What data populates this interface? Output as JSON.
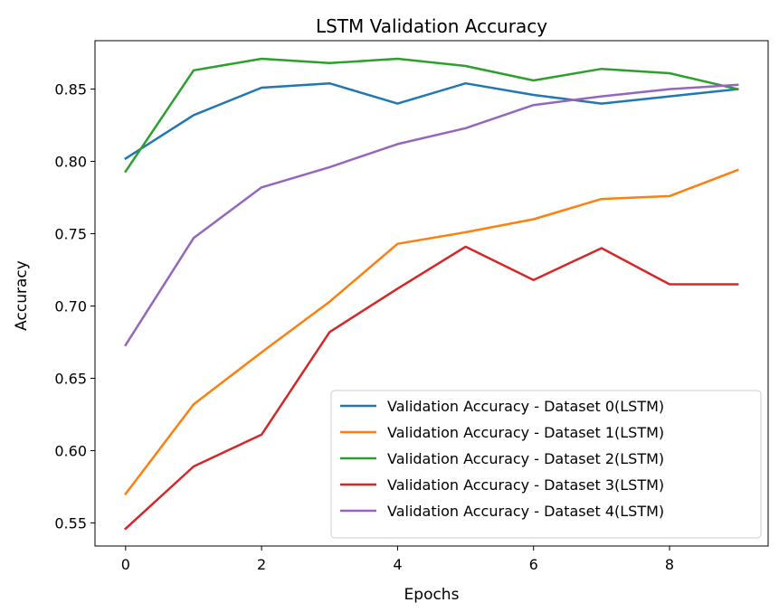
{
  "chart_data": {
    "type": "line",
    "title": "LSTM Validation Accuracy",
    "xlabel": "Epochs",
    "ylabel": "Accuracy",
    "xlim": [
      -0.45,
      9.45
    ],
    "ylim": [
      0.534,
      0.8835
    ],
    "x": [
      0,
      1,
      2,
      3,
      4,
      5,
      6,
      7,
      8,
      9
    ],
    "xticks": [
      0,
      2,
      4,
      6,
      8
    ],
    "xtick_labels": [
      "0",
      "2",
      "4",
      "6",
      "8"
    ],
    "yticks": [
      0.55,
      0.6,
      0.65,
      0.7,
      0.75,
      0.8,
      0.85
    ],
    "ytick_labels": [
      "0.55",
      "0.60",
      "0.65",
      "0.70",
      "0.75",
      "0.80",
      "0.85"
    ],
    "grid": false,
    "legend_position": "lower-right",
    "series": [
      {
        "name": "Validation Accuracy - Dataset 0(LSTM)",
        "color": "#1f77b4",
        "values": [
          0.802,
          0.832,
          0.851,
          0.854,
          0.84,
          0.854,
          0.846,
          0.84,
          0.845,
          0.85
        ]
      },
      {
        "name": "Validation Accuracy - Dataset 1(LSTM)",
        "color": "#ff7f0e",
        "values": [
          0.57,
          0.632,
          0.668,
          0.703,
          0.743,
          0.751,
          0.76,
          0.774,
          0.776,
          0.794
        ]
      },
      {
        "name": "Validation Accuracy - Dataset 2(LSTM)",
        "color": "#2ca02c",
        "values": [
          0.793,
          0.863,
          0.871,
          0.868,
          0.871,
          0.866,
          0.856,
          0.864,
          0.861,
          0.85
        ]
      },
      {
        "name": "Validation Accuracy - Dataset 3(LSTM)",
        "color": "#d62728",
        "values": [
          0.546,
          0.589,
          0.611,
          0.682,
          0.712,
          0.741,
          0.718,
          0.74,
          0.715,
          0.715
        ]
      },
      {
        "name": "Validation Accuracy - Dataset 4(LSTM)",
        "color": "#9467bd",
        "values": [
          0.673,
          0.747,
          0.782,
          0.796,
          0.812,
          0.823,
          0.839,
          0.845,
          0.85,
          0.853
        ]
      }
    ]
  }
}
